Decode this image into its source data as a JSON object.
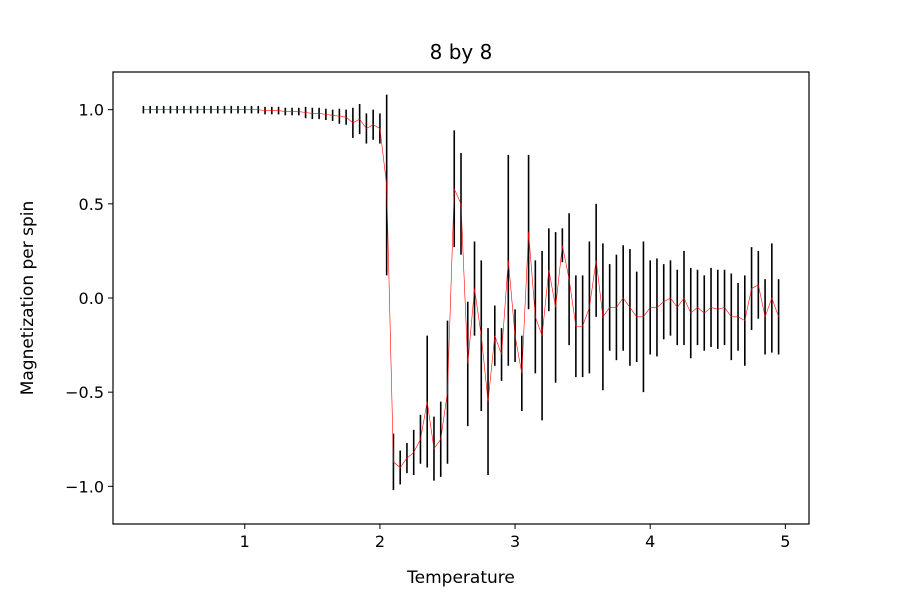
{
  "chart_data": {
    "type": "line",
    "title": "8 by 8",
    "xlabel": "Temperature",
    "ylabel": "Magnetization per spin",
    "xlim": [
      0.025,
      5.175
    ],
    "ylim": [
      -1.2,
      1.2
    ],
    "x_ticks": [
      1,
      2,
      3,
      4,
      5
    ],
    "x_tick_labels": [
      "1",
      "2",
      "3",
      "4",
      "5"
    ],
    "y_ticks": [
      -1.0,
      -0.5,
      0.0,
      0.5,
      1.0
    ],
    "y_tick_labels": [
      "−1.0",
      "−0.5",
      "0.0",
      "0.5",
      "1.0"
    ],
    "grid": false,
    "legend": "none",
    "colors": {
      "line": "#ff0000",
      "errorbar": "#000000"
    },
    "x": [
      0.25,
      0.3,
      0.35,
      0.4,
      0.45,
      0.5,
      0.55,
      0.6,
      0.65,
      0.7,
      0.75,
      0.8,
      0.85,
      0.9,
      0.95,
      1.0,
      1.05,
      1.1,
      1.15,
      1.2,
      1.25,
      1.3,
      1.35,
      1.4,
      1.45,
      1.5,
      1.55,
      1.6,
      1.65,
      1.7,
      1.75,
      1.8,
      1.85,
      1.9,
      1.95,
      2.0,
      2.05,
      2.1,
      2.15,
      2.2,
      2.25,
      2.3,
      2.35,
      2.4,
      2.45,
      2.5,
      2.55,
      2.6,
      2.65,
      2.7,
      2.75,
      2.8,
      2.85,
      2.9,
      2.95,
      3.0,
      3.05,
      3.1,
      3.15,
      3.2,
      3.25,
      3.3,
      3.35,
      3.4,
      3.45,
      3.5,
      3.55,
      3.6,
      3.65,
      3.7,
      3.75,
      3.8,
      3.85,
      3.9,
      3.95,
      4.0,
      4.05,
      4.1,
      4.15,
      4.2,
      4.25,
      4.3,
      4.35,
      4.4,
      4.45,
      4.5,
      4.55,
      4.6,
      4.65,
      4.7,
      4.75,
      4.8,
      4.85,
      4.9,
      4.95
    ],
    "y": [
      1.0,
      1.0,
      1.0,
      1.0,
      1.0,
      1.0,
      1.0,
      1.0,
      1.0,
      1.0,
      1.0,
      1.0,
      1.0,
      1.0,
      1.0,
      1.0,
      1.0,
      1.0,
      0.995,
      0.995,
      0.995,
      0.99,
      0.99,
      0.99,
      0.985,
      0.98,
      0.98,
      0.975,
      0.97,
      0.965,
      0.96,
      0.93,
      0.95,
      0.9,
      0.92,
      0.9,
      0.6,
      -0.87,
      -0.9,
      -0.85,
      -0.82,
      -0.75,
      -0.55,
      -0.8,
      -0.75,
      -0.5,
      0.58,
      0.5,
      -0.35,
      0.05,
      -0.2,
      -0.55,
      -0.2,
      -0.3,
      0.2,
      -0.2,
      -0.4,
      0.35,
      -0.1,
      -0.2,
      0.15,
      -0.05,
      0.28,
      0.1,
      -0.15,
      -0.15,
      -0.05,
      0.2,
      -0.1,
      -0.05,
      -0.05,
      0.0,
      -0.05,
      -0.1,
      -0.1,
      -0.05,
      -0.05,
      -0.02,
      0.0,
      -0.05,
      0.0,
      -0.08,
      -0.05,
      -0.08,
      -0.05,
      -0.06,
      -0.05,
      -0.1,
      -0.1,
      -0.12,
      0.05,
      0.07,
      -0.1,
      0.0,
      -0.1
    ],
    "yerr": [
      0.02,
      0.02,
      0.02,
      0.02,
      0.02,
      0.02,
      0.02,
      0.02,
      0.02,
      0.02,
      0.02,
      0.02,
      0.02,
      0.02,
      0.02,
      0.02,
      0.02,
      0.02,
      0.02,
      0.02,
      0.02,
      0.02,
      0.02,
      0.02,
      0.03,
      0.03,
      0.03,
      0.03,
      0.03,
      0.04,
      0.04,
      0.08,
      0.08,
      0.08,
      0.08,
      0.08,
      0.48,
      0.15,
      0.09,
      0.08,
      0.12,
      0.13,
      0.35,
      0.17,
      0.2,
      0.38,
      0.31,
      0.27,
      0.33,
      0.25,
      0.4,
      0.39,
      0.16,
      0.14,
      0.56,
      0.14,
      0.2,
      0.41,
      0.3,
      0.45,
      0.22,
      0.4,
      0.09,
      0.35,
      0.27,
      0.27,
      0.35,
      0.3,
      0.39,
      0.23,
      0.28,
      0.28,
      0.31,
      0.24,
      0.4,
      0.25,
      0.26,
      0.2,
      0.2,
      0.2,
      0.25,
      0.24,
      0.2,
      0.2,
      0.21,
      0.21,
      0.2,
      0.23,
      0.18,
      0.24,
      0.22,
      0.18,
      0.2,
      0.29,
      0.2
    ]
  }
}
